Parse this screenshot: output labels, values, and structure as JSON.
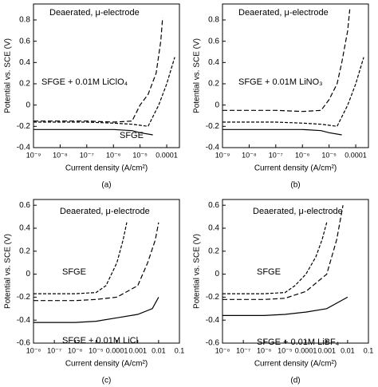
{
  "chart_data": [
    {
      "type": "line",
      "panel_label": "(a)",
      "xlabel": "Current density (A/cm²)",
      "ylabel": "Potential vs. SCE (V)",
      "xlog": true,
      "annotations": [
        "Deaerated, μ-electrode",
        "SFGE + 0.01M LiClO₄",
        "SFGE"
      ],
      "xlim": [
        1e-09,
        0.0003
      ],
      "ylim": [
        -0.4,
        0.95
      ],
      "xticks": [
        {
          "value": 1e-09,
          "label": "10⁻⁹"
        },
        {
          "value": 1e-08,
          "label": "10⁻⁸"
        },
        {
          "value": 1e-07,
          "label": "10⁻⁷"
        },
        {
          "value": 1e-06,
          "label": "10⁻⁶"
        },
        {
          "value": 1e-05,
          "label": "10⁻⁵"
        },
        0.0001
      ],
      "yticks": [
        -0.4,
        -0.2,
        0,
        0.2,
        0.4,
        0.6,
        0.8
      ],
      "series": [
        {
          "color": "#000000",
          "x": [
            1e-09,
            1e-07,
            1e-06,
            5e-06,
            2e-05,
            5e-05,
            0.0001,
            0.0002
          ],
          "values": [
            -0.16,
            -0.16,
            -0.17,
            -0.18,
            -0.2,
            0,
            0.2,
            0.45
          ]
        },
        {
          "color": "#000000",
          "x": [
            1e-09,
            1e-07,
            1e-06,
            5e-06,
            1e-05,
            2e-05,
            4e-05,
            6e-05,
            7e-05
          ],
          "values": [
            -0.15,
            -0.15,
            -0.16,
            -0.15,
            0,
            0.1,
            0.3,
            0.6,
            0.82
          ]
        },
        {
          "color": "#000000",
          "x": [
            1e-09,
            1e-07,
            1e-06,
            5e-06,
            1e-05,
            3e-05
          ],
          "values": [
            -0.23,
            -0.23,
            -0.23,
            -0.24,
            -0.26,
            -0.28
          ]
        }
      ]
    },
    {
      "type": "line",
      "panel_label": "(b)",
      "xlabel": "Current density (A/cm²)",
      "ylabel": "Potential vs. SCE (V)",
      "xlog": true,
      "annotations": [
        "Deaerated, μ-electrode",
        "SFGE + 0.01M LiNO₃"
      ],
      "xlim": [
        1e-09,
        0.0003
      ],
      "ylim": [
        -0.4,
        0.95
      ],
      "xticks": [
        {
          "value": 1e-09,
          "label": "10⁻⁹"
        },
        {
          "value": 1e-08,
          "label": "10⁻⁸"
        },
        {
          "value": 1e-07,
          "label": "10⁻⁷"
        },
        {
          "value": 1e-06,
          "label": "10⁻⁶"
        },
        {
          "value": 1e-05,
          "label": "10⁻⁵"
        },
        0.0001
      ],
      "yticks": [
        -0.4,
        -0.2,
        0,
        0.2,
        0.4,
        0.6,
        0.8
      ],
      "series": [
        {
          "color": "#000000",
          "x": [
            1e-09,
            1e-07,
            1e-06,
            5e-06,
            2e-05,
            5e-05,
            0.0001,
            0.0002
          ],
          "values": [
            -0.16,
            -0.16,
            -0.17,
            -0.18,
            -0.2,
            0,
            0.2,
            0.45
          ]
        },
        {
          "color": "#000000",
          "x": [
            1e-09,
            1e-07,
            1e-06,
            5e-06,
            1e-05,
            2e-05,
            3e-05,
            5e-05,
            6e-05
          ],
          "values": [
            -0.05,
            -0.05,
            -0.06,
            -0.05,
            0.05,
            0.2,
            0.4,
            0.7,
            0.9
          ]
        },
        {
          "color": "#000000",
          "x": [
            1e-09,
            1e-07,
            1e-06,
            5e-06,
            1e-05,
            3e-05
          ],
          "values": [
            -0.23,
            -0.23,
            -0.23,
            -0.24,
            -0.26,
            -0.28
          ]
        }
      ]
    },
    {
      "type": "line",
      "panel_label": "(c)",
      "xlabel": "Current density (A/cm²)",
      "ylabel": "Potential vs. SCE (V)",
      "xlog": true,
      "annotations": [
        "Deaerated, μ-electrode",
        "SFGE",
        "SFGE + 0.01M LiCl"
      ],
      "xlim": [
        1e-08,
        0.1
      ],
      "ylim": [
        -0.6,
        0.65
      ],
      "xticks": [
        {
          "value": 1e-08,
          "label": "10⁻⁸"
        },
        {
          "value": 1e-07,
          "label": "10⁻⁷"
        },
        {
          "value": 1e-06,
          "label": "10⁻⁶"
        },
        {
          "value": 1e-05,
          "label": "10⁻⁵"
        },
        0.0001,
        0.001,
        0.01,
        0.1
      ],
      "yticks": [
        -0.6,
        -0.4,
        -0.2,
        0,
        0.2,
        0.4,
        0.6
      ],
      "series": [
        {
          "color": "#000000",
          "x": [
            1e-08,
            1e-06,
            1e-05,
            3e-05,
            0.0001,
            0.0002,
            0.0003
          ],
          "values": [
            -0.17,
            -0.17,
            -0.16,
            -0.1,
            0.1,
            0.3,
            0.45
          ]
        },
        {
          "color": "#000000",
          "x": [
            1e-08,
            1e-06,
            1e-05,
            0.0001,
            0.001,
            0.003,
            0.007,
            0.01
          ],
          "values": [
            -0.23,
            -0.23,
            -0.22,
            -0.2,
            -0.1,
            0.1,
            0.3,
            0.45
          ]
        },
        {
          "color": "#000000",
          "x": [
            1e-08,
            1e-06,
            1e-05,
            0.0001,
            0.001,
            0.005,
            0.01
          ],
          "values": [
            -0.42,
            -0.42,
            -0.41,
            -0.38,
            -0.35,
            -0.3,
            -0.2
          ]
        }
      ]
    },
    {
      "type": "line",
      "panel_label": "(d)",
      "xlabel": "Current density (A/cm²)",
      "ylabel": "Potential vs. SCE (V)",
      "xlog": true,
      "annotations": [
        "Deaerated, μ-electrode",
        "SFGE",
        "SFGE + 0.01M LiBF₄"
      ],
      "xlim": [
        1e-08,
        0.1
      ],
      "ylim": [
        -0.6,
        0.65
      ],
      "xticks": [
        {
          "value": 1e-08,
          "label": "10⁻⁸"
        },
        {
          "value": 1e-07,
          "label": "10⁻⁷"
        },
        {
          "value": 1e-06,
          "label": "10⁻⁶"
        },
        {
          "value": 1e-05,
          "label": "10⁻⁵"
        },
        0.0001,
        0.001,
        0.01,
        0.1
      ],
      "yticks": [
        -0.6,
        -0.4,
        -0.2,
        0,
        0.2,
        0.4,
        0.6
      ],
      "series": [
        {
          "color": "#000000",
          "x": [
            1e-08,
            1e-06,
            1e-05,
            3e-05,
            0.0001,
            0.0003,
            0.0006,
            0.001
          ],
          "values": [
            -0.17,
            -0.17,
            -0.16,
            -0.1,
            0,
            0.15,
            0.3,
            0.45
          ]
        },
        {
          "color": "#000000",
          "x": [
            1e-08,
            1e-06,
            1e-05,
            0.0001,
            0.001,
            0.003,
            0.006
          ],
          "values": [
            -0.22,
            -0.22,
            -0.21,
            -0.15,
            0,
            0.3,
            0.6
          ]
        },
        {
          "color": "#000000",
          "x": [
            1e-08,
            1e-06,
            1e-05,
            0.0001,
            0.001,
            0.01
          ],
          "values": [
            -0.36,
            -0.36,
            -0.35,
            -0.33,
            -0.3,
            -0.2
          ]
        }
      ]
    }
  ]
}
